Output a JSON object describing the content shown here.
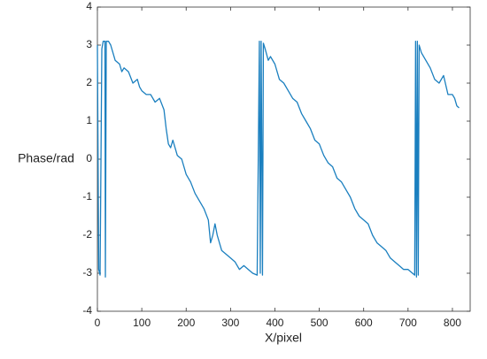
{
  "chart_data": {
    "type": "line",
    "xlabel": "X/pixel",
    "ylabel": "Phase/rad",
    "color": "#1a7fbf",
    "x": [
      0,
      3,
      6,
      10,
      13,
      17,
      18,
      20,
      25,
      30,
      40,
      50,
      55,
      60,
      70,
      80,
      90,
      95,
      100,
      110,
      120,
      130,
      140,
      150,
      155,
      160,
      165,
      170,
      175,
      180,
      190,
      200,
      210,
      220,
      230,
      240,
      250,
      255,
      260,
      265,
      270,
      280,
      290,
      300,
      310,
      320,
      330,
      340,
      350,
      360,
      365,
      367,
      369,
      372,
      374,
      378,
      385,
      390,
      400,
      410,
      420,
      430,
      440,
      450,
      460,
      470,
      480,
      490,
      500,
      510,
      520,
      530,
      540,
      550,
      560,
      570,
      580,
      590,
      600,
      610,
      620,
      630,
      640,
      650,
      660,
      670,
      680,
      690,
      700,
      710,
      715,
      717,
      719,
      721,
      723,
      725,
      730,
      740,
      750,
      760,
      770,
      780,
      790,
      800,
      805,
      810,
      815
    ],
    "values": [
      3.0,
      -2.9,
      -3.05,
      2.9,
      3.1,
      3.1,
      -3.1,
      3.1,
      3.1,
      3.0,
      2.6,
      2.5,
      2.3,
      2.4,
      2.3,
      2.0,
      2.1,
      1.9,
      1.8,
      1.7,
      1.7,
      1.5,
      1.6,
      1.3,
      0.8,
      0.4,
      0.3,
      0.5,
      0.3,
      0.1,
      0.0,
      -0.4,
      -0.6,
      -0.9,
      -1.1,
      -1.3,
      -1.6,
      -2.2,
      -2.0,
      -1.7,
      -2.0,
      -2.4,
      -2.5,
      -2.6,
      -2.7,
      -2.9,
      -2.8,
      -2.9,
      -3.0,
      -3.05,
      3.1,
      -3.0,
      3.1,
      -3.05,
      3.05,
      2.9,
      2.6,
      2.7,
      2.5,
      2.1,
      2.0,
      1.8,
      1.6,
      1.5,
      1.2,
      1.0,
      0.8,
      0.5,
      0.4,
      0.1,
      -0.1,
      -0.2,
      -0.5,
      -0.6,
      -0.8,
      -1.0,
      -1.3,
      -1.5,
      -1.6,
      -1.7,
      -2.0,
      -2.2,
      -2.3,
      -2.4,
      -2.6,
      -2.7,
      -2.8,
      -2.9,
      -2.9,
      -3.0,
      -3.05,
      3.1,
      -3.1,
      3.1,
      -3.05,
      3.0,
      2.8,
      2.6,
      2.4,
      2.1,
      2.0,
      2.2,
      1.7,
      1.7,
      1.6,
      1.4,
      1.35
    ],
    "xlim": [
      0,
      840
    ],
    "xticks": [
      0,
      100,
      200,
      300,
      400,
      500,
      600,
      700,
      800
    ],
    "ylim": [
      -4,
      4
    ],
    "yticks": [
      -4,
      -3,
      -2,
      -1,
      0,
      1,
      2,
      3,
      4
    ],
    "grid": false
  }
}
